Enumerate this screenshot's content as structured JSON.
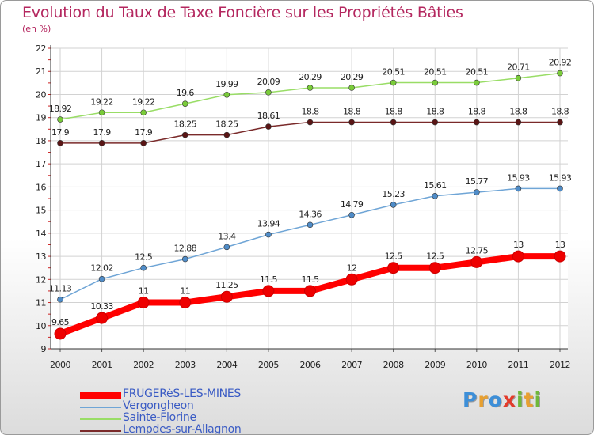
{
  "title": "Evolution du Taux de Taxe Foncière sur les Propriétés Bâties",
  "unit_label": "(en %)",
  "logo": {
    "text": "Proxiti",
    "letters": [
      {
        "ch": "P",
        "color": "#3d8fd8"
      },
      {
        "ch": "r",
        "color": "#e8a030"
      },
      {
        "ch": "o",
        "color": "#3d8fd8"
      },
      {
        "ch": "x",
        "color": "#e33b2b"
      },
      {
        "ch": "i",
        "color": "#6fb83a"
      },
      {
        "ch": "t",
        "color": "#e8a030"
      },
      {
        "ch": "i",
        "color": "#6fb83a"
      }
    ]
  },
  "chart_data": {
    "type": "line",
    "title": "Evolution du Taux de Taxe Foncière sur les Propriétés Bâties",
    "ylabel": "(en %)",
    "xlabel": "",
    "ylim": [
      9,
      22
    ],
    "yticks": [
      9,
      10,
      11,
      12,
      13,
      14,
      15,
      16,
      17,
      18,
      19,
      20,
      21,
      22
    ],
    "categories": [
      "2000",
      "2001",
      "2002",
      "2003",
      "2004",
      "2005",
      "2006",
      "2007",
      "2008",
      "2009",
      "2010",
      "2011",
      "2012"
    ],
    "grid": true,
    "legend": "bottom-left",
    "series": [
      {
        "name": "Sainte-Florine",
        "color": "#99dd66",
        "marker": "#7acc3a",
        "emphasis": false,
        "values": [
          18.92,
          19.22,
          19.22,
          19.6,
          19.99,
          20.09,
          20.29,
          20.29,
          20.51,
          20.51,
          20.51,
          20.71,
          20.92
        ],
        "labels": [
          "18.92",
          "19.22",
          "19.22",
          "19.6",
          "19.99",
          "20.09",
          "20.29",
          "20.29",
          "20.51",
          "20.51",
          "20.51",
          "20.71",
          "20.92"
        ]
      },
      {
        "name": "Lempdes-sur-Allagnon",
        "color": "#7a2a2a",
        "marker": "#5a1515",
        "emphasis": false,
        "values": [
          17.9,
          17.9,
          17.9,
          18.25,
          18.25,
          18.61,
          18.8,
          18.8,
          18.8,
          18.8,
          18.8,
          18.8,
          18.8
        ],
        "labels": [
          "17.9",
          "17.9",
          "17.9",
          "18.25",
          "18.25",
          "18.61",
          "18.8",
          "18.8",
          "18.8",
          "18.8",
          "18.8",
          "18.8",
          "18.8"
        ]
      },
      {
        "name": "Vergongheon",
        "color": "#6fa5d6",
        "marker": "#4f8cc8",
        "emphasis": false,
        "values": [
          11.13,
          12.02,
          12.5,
          12.88,
          13.4,
          13.94,
          14.36,
          14.79,
          15.23,
          15.61,
          15.77,
          15.93,
          15.93
        ],
        "labels": [
          "11.13",
          "12.02",
          "12.5",
          "12.88",
          "13.4",
          "13.94",
          "14.36",
          "14.79",
          "15.23",
          "15.61",
          "15.77",
          "15.93",
          "15.93"
        ]
      },
      {
        "name": "FRUGERèS-LES-MINES",
        "color": "#ff0000",
        "marker": "#ee0000",
        "emphasis": true,
        "values": [
          9.65,
          10.33,
          11,
          11,
          11.25,
          11.5,
          11.5,
          12,
          12.5,
          12.5,
          12.75,
          13,
          13
        ],
        "labels": [
          "9.65",
          "10.33",
          "11",
          "11",
          "11.25",
          "11.5",
          "11.5",
          "12",
          "12.5",
          "12.5",
          "12.75",
          "13",
          "13"
        ]
      }
    ],
    "legend_order": [
      "FRUGERèS-LES-MINES",
      "Vergongheon",
      "Sainte-Florine",
      "Lempdes-sur-Allagnon"
    ]
  }
}
